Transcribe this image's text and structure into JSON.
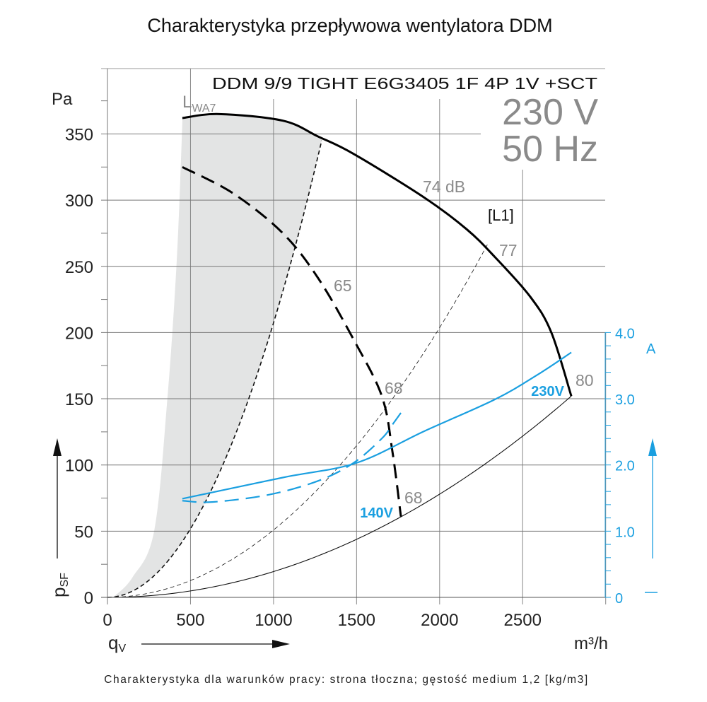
{
  "title": "Charakterystyka przepływowa wentylatora DDM",
  "footer": "Charakterystyka dla warunków pracy: strona tłoczna; gęstość medium 1,2 [kg/m3]",
  "chart_data": {
    "type": "line",
    "model": "DDM 9/9 TIGHT E6G3405 1F 4P 1V +SCT",
    "voltage": "230 V",
    "frequency": "50 Hz",
    "xlabel": "q",
    "xlabel_sub": "V",
    "xunit": "m³/h",
    "ylabel": "p",
    "ylabel_sub": "SF",
    "yunit": "Pa",
    "y2unit": "A",
    "xlim": [
      0,
      3000
    ],
    "ylim": [
      0,
      400
    ],
    "y2lim": [
      0,
      4.0
    ],
    "grid": true,
    "xticks": [
      "0",
      "500",
      "1000",
      "1500",
      "2000",
      "2500"
    ],
    "xtick_values": [
      0,
      500,
      1000,
      1500,
      2000,
      2500
    ],
    "yticks": [
      "0",
      "50",
      "100",
      "150",
      "200",
      "250",
      "300",
      "350"
    ],
    "ytick_values": [
      0,
      50,
      100,
      150,
      200,
      250,
      300,
      350
    ],
    "y2ticks": [
      "0",
      "1.0",
      "2.0",
      "3.0",
      "4.0"
    ],
    "y2tick_values": [
      0,
      1.0,
      2.0,
      3.0,
      4.0
    ],
    "colors": {
      "pressure": "#000000",
      "current": "#1a9fe0",
      "labels": "#8a8a8a",
      "shade": "#e3e4e4"
    },
    "series": [
      {
        "name": "230V",
        "axis": "pressure",
        "style": "solid",
        "x": [
          451,
          672,
          1056,
          1269,
          1481,
          1907,
          2163,
          2333,
          2546,
          2673,
          2793
        ],
        "y": [
          362,
          365,
          360,
          348,
          335,
          302,
          278,
          257,
          227,
          200,
          152
        ]
      },
      {
        "name": "140V",
        "axis": "pressure",
        "style": "dashed",
        "x": [
          451,
          758,
          1056,
          1269,
          1481,
          1652,
          1716,
          1767
        ],
        "y": [
          325,
          305,
          275,
          241,
          195,
          152,
          110,
          61
        ]
      },
      {
        "name": "230V",
        "axis": "current",
        "style": "solid",
        "x": [
          451,
          1056,
          1498,
          1907,
          2333,
          2588,
          2793
        ],
        "y": [
          1.49,
          1.81,
          2.03,
          2.51,
          2.99,
          3.36,
          3.7
        ]
      },
      {
        "name": "140V",
        "axis": "current",
        "style": "dashed",
        "x": [
          451,
          630,
          971,
          1269,
          1481,
          1652,
          1716,
          1779
        ],
        "y": [
          1.46,
          1.44,
          1.55,
          1.76,
          2.03,
          2.4,
          2.61,
          2.83
        ]
      }
    ],
    "system_curves": [
      {
        "style": "dashed",
        "through": [
          1290,
          345
        ]
      },
      {
        "style": "dashed-thin",
        "through": [
          2290,
          267
        ]
      },
      {
        "style": "solid-thin",
        "through": [
          2793,
          152
        ]
      }
    ],
    "shaded_region_left_edge": {
      "x": [
        34,
        150,
        281,
        362,
        417,
        447,
        451
      ],
      "y": [
        0,
        15,
        50,
        152,
        254,
        345,
        362
      ]
    },
    "annotations": [
      {
        "text": "L",
        "sub": "WA7",
        "kind": "sound"
      },
      {
        "text": "74 dB",
        "kind": "sound"
      },
      {
        "text": "[L1]",
        "kind": "label"
      },
      {
        "text": "77",
        "kind": "sound"
      },
      {
        "text": "65",
        "kind": "sound"
      },
      {
        "text": "68",
        "kind": "sound"
      },
      {
        "text": "68",
        "kind": "sound"
      },
      {
        "text": "80",
        "kind": "sound"
      },
      {
        "text": "230V",
        "kind": "current-label"
      },
      {
        "text": "140V",
        "kind": "current-label"
      }
    ]
  }
}
